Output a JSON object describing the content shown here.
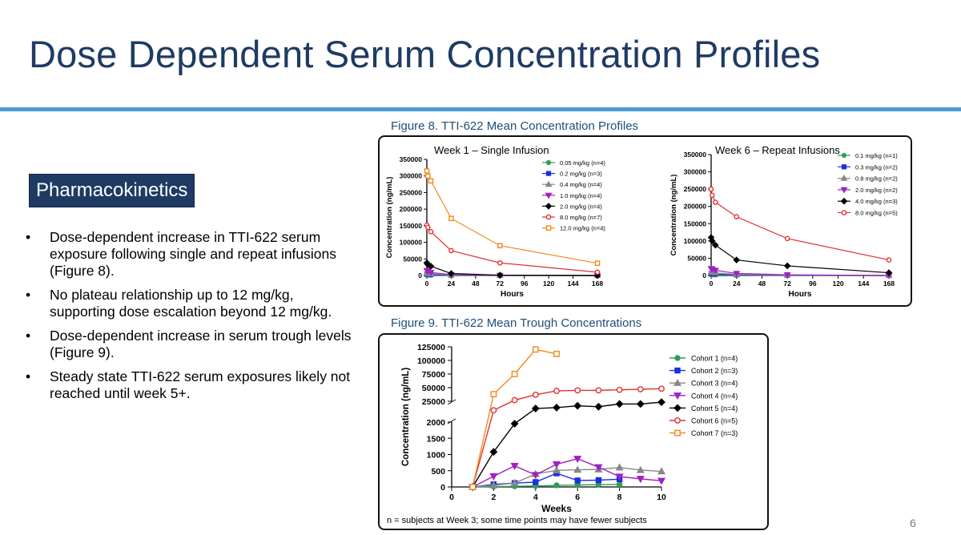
{
  "slide": {
    "title": "Dose Dependent Serum Concentration Profiles",
    "section_header": "Pharmacokinetics",
    "bullets": [
      "Dose-dependent increase in TTI-622 serum exposure following single and repeat infusions (Figure 8).",
      "No plateau relationship up to 12 mg/kg, supporting dose escalation beyond 12 mg/kg.",
      "Dose-dependent increase in serum trough levels (Figure 9).",
      "Steady state TTI-622 serum exposures likely not reached until week 5+."
    ],
    "bullet_symbol": "•",
    "figure8_caption": "Figure 8. TTI-622 Mean Concentration Profiles",
    "figure9_caption": "Figure 9. TTI-622 Mean Trough Concentrations",
    "footnote": "n = subjects at Week 3; some time points may have fewer subjects",
    "page_number": "6",
    "colors": {
      "title": "#1f3b63",
      "accent_rule": "#4c9ad6",
      "caption": "#1f4e79"
    }
  },
  "chart_data": [
    {
      "type": "line",
      "title": "Week 1 – Single Infusion",
      "xlabel": "Hours",
      "ylabel": "Concentration (ng/mL)",
      "xlim": [
        0,
        168
      ],
      "ylim": [
        0,
        350000
      ],
      "xticks": [
        0,
        24,
        48,
        72,
        96,
        120,
        144,
        168
      ],
      "yticks": [
        0,
        50000,
        100000,
        150000,
        200000,
        250000,
        300000,
        350000
      ],
      "x": [
        0,
        1,
        4,
        24,
        72,
        168
      ],
      "legend_position": "top-right",
      "series": [
        {
          "name": "0.05 mg/kg (n=4)",
          "color": "#2e9e5b",
          "marker": "circle",
          "values": [
            1000,
            800,
            400,
            100,
            0,
            0
          ]
        },
        {
          "name": "0.2 mg/kg (n=3)",
          "color": "#1a2fe0",
          "marker": "square",
          "values": [
            4000,
            3500,
            2500,
            800,
            200,
            0
          ]
        },
        {
          "name": "0.4 mg/kg (n=4)",
          "color": "#888888",
          "marker": "triangle",
          "values": [
            8000,
            7000,
            5000,
            1500,
            300,
            0
          ]
        },
        {
          "name": "1.0 mg/kg (n=4)",
          "color": "#a020c0",
          "marker": "triangle-down",
          "values": [
            15000,
            13000,
            9000,
            2500,
            500,
            0
          ]
        },
        {
          "name": "2.0 mg/kg (n=4)",
          "color": "#000000",
          "marker": "diamond",
          "values": [
            38000,
            33000,
            28000,
            6000,
            1000,
            0
          ]
        },
        {
          "name": "8.0 mg/kg (n=7)",
          "color": "#e03030",
          "marker": "open-circle",
          "values": [
            152000,
            145000,
            132000,
            75000,
            38000,
            10000
          ]
        },
        {
          "name": "12.0 mg/kg (n=4)",
          "color": "#f08a1e",
          "marker": "open-square",
          "values": [
            315000,
            300000,
            285000,
            172000,
            90000,
            37000
          ]
        }
      ]
    },
    {
      "type": "line",
      "title": "Week 6 – Repeat Infusions",
      "xlabel": "Hours",
      "ylabel": "Concentration (ng/mL)",
      "xlim": [
        0,
        168
      ],
      "ylim": [
        0,
        350000
      ],
      "xticks": [
        0,
        24,
        48,
        72,
        96,
        120,
        144,
        168
      ],
      "yticks": [
        0,
        50000,
        100000,
        150000,
        200000,
        250000,
        300000,
        350000
      ],
      "x": [
        0,
        1,
        4,
        24,
        72,
        168
      ],
      "legend_position": "top-right",
      "series": [
        {
          "name": "0.1 mg/kg (n=1)",
          "color": "#2e9e5b",
          "marker": "circle",
          "values": [
            2000,
            1800,
            1500,
            600,
            200,
            0
          ]
        },
        {
          "name": "0.3 mg/kg (n=2)",
          "color": "#1a2fe0",
          "marker": "square",
          "values": [
            5000,
            4500,
            4000,
            1500,
            500,
            0
          ]
        },
        {
          "name": "0.8 mg/kg (n=2)",
          "color": "#888888",
          "marker": "triangle",
          "values": [
            10000,
            9000,
            8000,
            3000,
            1000,
            0
          ]
        },
        {
          "name": "2.0 mg/kg (n=2)",
          "color": "#a020c0",
          "marker": "triangle-down",
          "values": [
            20000,
            18000,
            15000,
            6000,
            2000,
            0
          ]
        },
        {
          "name": "4.0 mg/kg (n=3)",
          "color": "#000000",
          "marker": "diamond",
          "values": [
            110000,
            100000,
            88000,
            45000,
            28000,
            8000
          ]
        },
        {
          "name": "8.0 mg/kg (n=5)",
          "color": "#e03030",
          "marker": "open-circle",
          "values": [
            250000,
            232000,
            212000,
            170000,
            107000,
            45000
          ]
        }
      ]
    },
    {
      "type": "line",
      "xlabel": "Weeks",
      "ylabel": "Concentration (ng/mL)",
      "xlim": [
        0,
        10
      ],
      "xticks": [
        0,
        2,
        4,
        6,
        8,
        10
      ],
      "y_axis_broken": true,
      "ylim_lower": [
        0,
        2000
      ],
      "ylim_upper": [
        25000,
        125000
      ],
      "yticks_lower": [
        0,
        500,
        1000,
        1500,
        2000
      ],
      "yticks_upper": [
        25000,
        50000,
        75000,
        100000,
        125000
      ],
      "legend_position": "right",
      "series": [
        {
          "name": "Cohort 1 (n=4)",
          "color": "#2e9e5b",
          "marker": "circle",
          "x": [
            1,
            2,
            3,
            4,
            5,
            6,
            7,
            8
          ],
          "values": [
            0,
            10,
            20,
            30,
            50,
            60,
            70,
            80
          ]
        },
        {
          "name": "Cohort 2 (n=3)",
          "color": "#1a2fe0",
          "marker": "square",
          "x": [
            1,
            2,
            3,
            4,
            5,
            6,
            7,
            8
          ],
          "values": [
            0,
            80,
            120,
            150,
            420,
            200,
            210,
            240
          ]
        },
        {
          "name": "Cohort 3 (n=4)",
          "color": "#888888",
          "marker": "triangle",
          "x": [
            1,
            2,
            3,
            4,
            5,
            6,
            7,
            8,
            9,
            10
          ],
          "values": [
            0,
            50,
            120,
            400,
            510,
            530,
            540,
            600,
            520,
            480
          ]
        },
        {
          "name": "Cohort 4 (n=4)",
          "color": "#a020c0",
          "marker": "triangle-down",
          "x": [
            1,
            2,
            3,
            4,
            5,
            6,
            7,
            8,
            9,
            10
          ],
          "values": [
            0,
            330,
            650,
            370,
            700,
            870,
            610,
            320,
            250,
            190
          ]
        },
        {
          "name": "Cohort 5 (n=4)",
          "color": "#000000",
          "marker": "diamond",
          "x": [
            1,
            2,
            3,
            4,
            5,
            6,
            7,
            8,
            9,
            10
          ],
          "values": [
            0,
            1080,
            1950,
            17000,
            18000,
            20000,
            19000,
            22000,
            22000,
            24000
          ]
        },
        {
          "name": "Cohort 6 (n=5)",
          "color": "#e03030",
          "marker": "open-circle",
          "x": [
            1,
            2,
            3,
            4,
            5,
            6,
            7,
            8,
            9,
            10
          ],
          "values": [
            0,
            15000,
            27000,
            37000,
            44000,
            45000,
            45000,
            46000,
            47000,
            48000
          ]
        },
        {
          "name": "Cohort 7 (n=3)",
          "color": "#f08a1e",
          "marker": "open-square",
          "x": [
            1,
            2,
            3,
            4,
            5
          ],
          "values": [
            0,
            38000,
            75000,
            120000,
            112000
          ]
        }
      ]
    }
  ]
}
